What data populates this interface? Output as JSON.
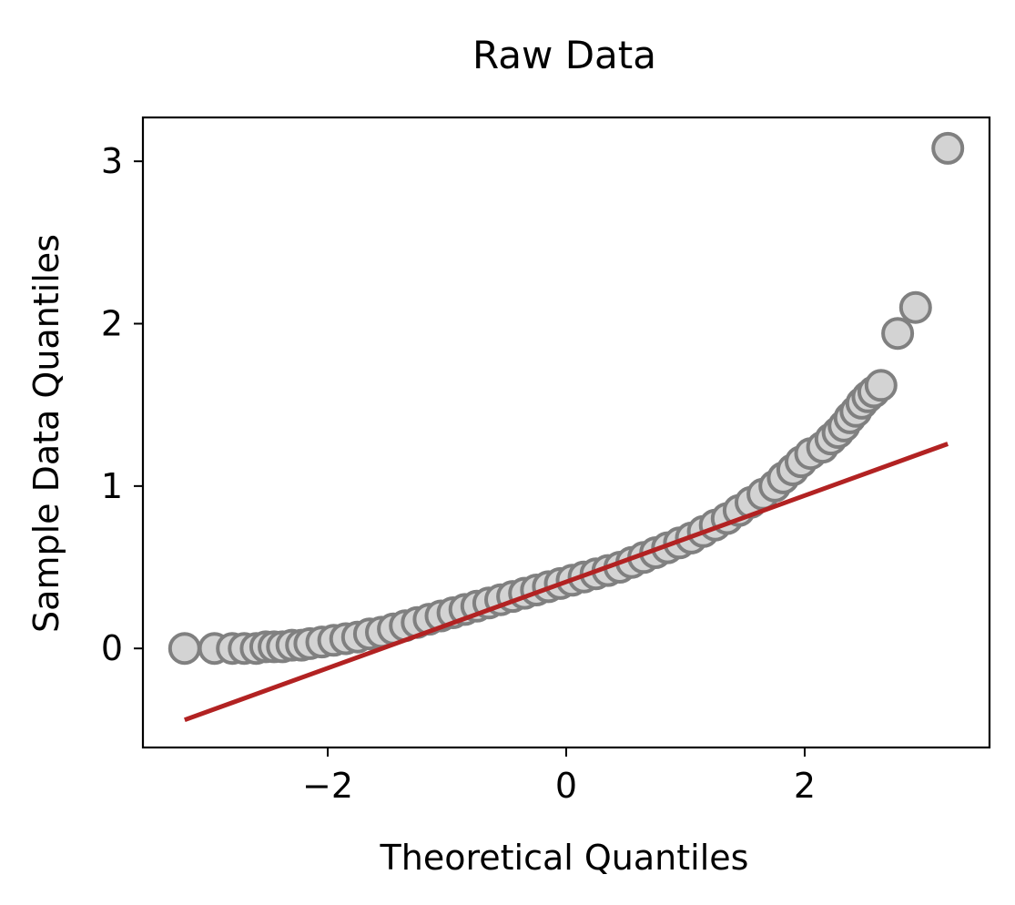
{
  "chart_data": {
    "type": "scatter",
    "title": "Raw Data",
    "xlabel": "Theoretical Quantiles",
    "ylabel": "Sample Data Quantiles",
    "xlim": [
      -3.55,
      3.55
    ],
    "ylim": [
      -0.61,
      3.27
    ],
    "grid": false,
    "legend": "none",
    "x_ticks": [
      {
        "value": -2,
        "label": "−2"
      },
      {
        "value": 0,
        "label": "0"
      },
      {
        "value": 2,
        "label": "2"
      }
    ],
    "y_ticks": [
      {
        "value": 0,
        "label": "0"
      },
      {
        "value": 1,
        "label": "1"
      },
      {
        "value": 2,
        "label": "2"
      },
      {
        "value": 3,
        "label": "3"
      }
    ],
    "series": [
      {
        "kind": "points",
        "marker_fill": "#d3d3d3",
        "marker_edge": "#808080",
        "x": [
          -3.2,
          -2.95,
          -2.8,
          -2.7,
          -2.6,
          -2.52,
          -2.45,
          -2.38,
          -2.3,
          -2.22,
          -2.15,
          -2.05,
          -1.95,
          -1.85,
          -1.75,
          -1.65,
          -1.55,
          -1.45,
          -1.35,
          -1.25,
          -1.15,
          -1.05,
          -0.95,
          -0.85,
          -0.75,
          -0.65,
          -0.55,
          -0.45,
          -0.35,
          -0.25,
          -0.15,
          -0.05,
          0.05,
          0.15,
          0.25,
          0.35,
          0.45,
          0.55,
          0.65,
          0.75,
          0.85,
          0.95,
          1.05,
          1.15,
          1.25,
          1.35,
          1.45,
          1.55,
          1.65,
          1.75,
          1.82,
          1.9,
          1.97,
          2.05,
          2.15,
          2.22,
          2.28,
          2.33,
          2.38,
          2.43,
          2.48,
          2.53,
          2.58,
          2.64,
          2.78,
          2.93,
          3.2
        ],
        "y": [
          0.0,
          0.0,
          0.0,
          0.0,
          0.0,
          0.01,
          0.01,
          0.01,
          0.02,
          0.02,
          0.03,
          0.04,
          0.05,
          0.06,
          0.07,
          0.09,
          0.1,
          0.12,
          0.14,
          0.16,
          0.18,
          0.2,
          0.22,
          0.24,
          0.26,
          0.28,
          0.3,
          0.32,
          0.34,
          0.36,
          0.38,
          0.4,
          0.42,
          0.44,
          0.46,
          0.48,
          0.5,
          0.53,
          0.56,
          0.59,
          0.62,
          0.65,
          0.68,
          0.72,
          0.76,
          0.8,
          0.85,
          0.9,
          0.95,
          1.0,
          1.05,
          1.1,
          1.15,
          1.2,
          1.24,
          1.29,
          1.33,
          1.37,
          1.42,
          1.46,
          1.51,
          1.55,
          1.58,
          1.62,
          1.94,
          2.1,
          3.08
        ]
      },
      {
        "kind": "line",
        "color": "#b22222",
        "x": [
          -3.2,
          3.2
        ],
        "y": [
          -0.44,
          1.26
        ]
      }
    ]
  }
}
